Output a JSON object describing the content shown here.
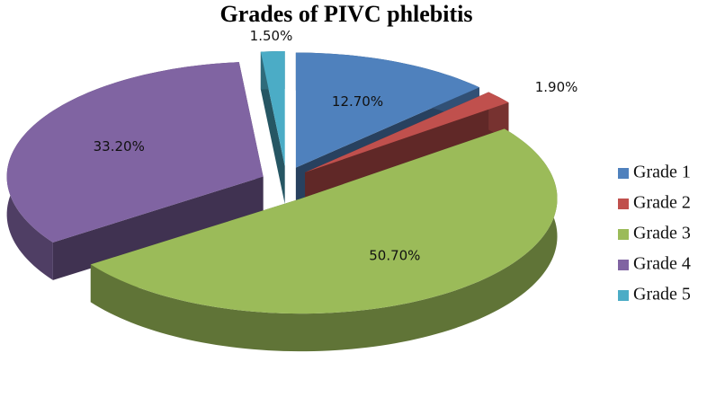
{
  "chart_data": {
    "type": "pie",
    "title": "Grades of PIVC phlebitis",
    "categories": [
      "Grade 1",
      "Grade 2",
      "Grade 3",
      "Grade 4",
      "Grade 5"
    ],
    "values": [
      12.7,
      1.9,
      50.7,
      33.2,
      1.5
    ],
    "value_labels": [
      "12.70%",
      "1.90%",
      "50.70%",
      "33.20%",
      "1.50%"
    ],
    "colors": [
      "#4f81bd",
      "#c0504d",
      "#9bbb59",
      "#8064a2",
      "#4bacc6"
    ],
    "legend": "right"
  }
}
